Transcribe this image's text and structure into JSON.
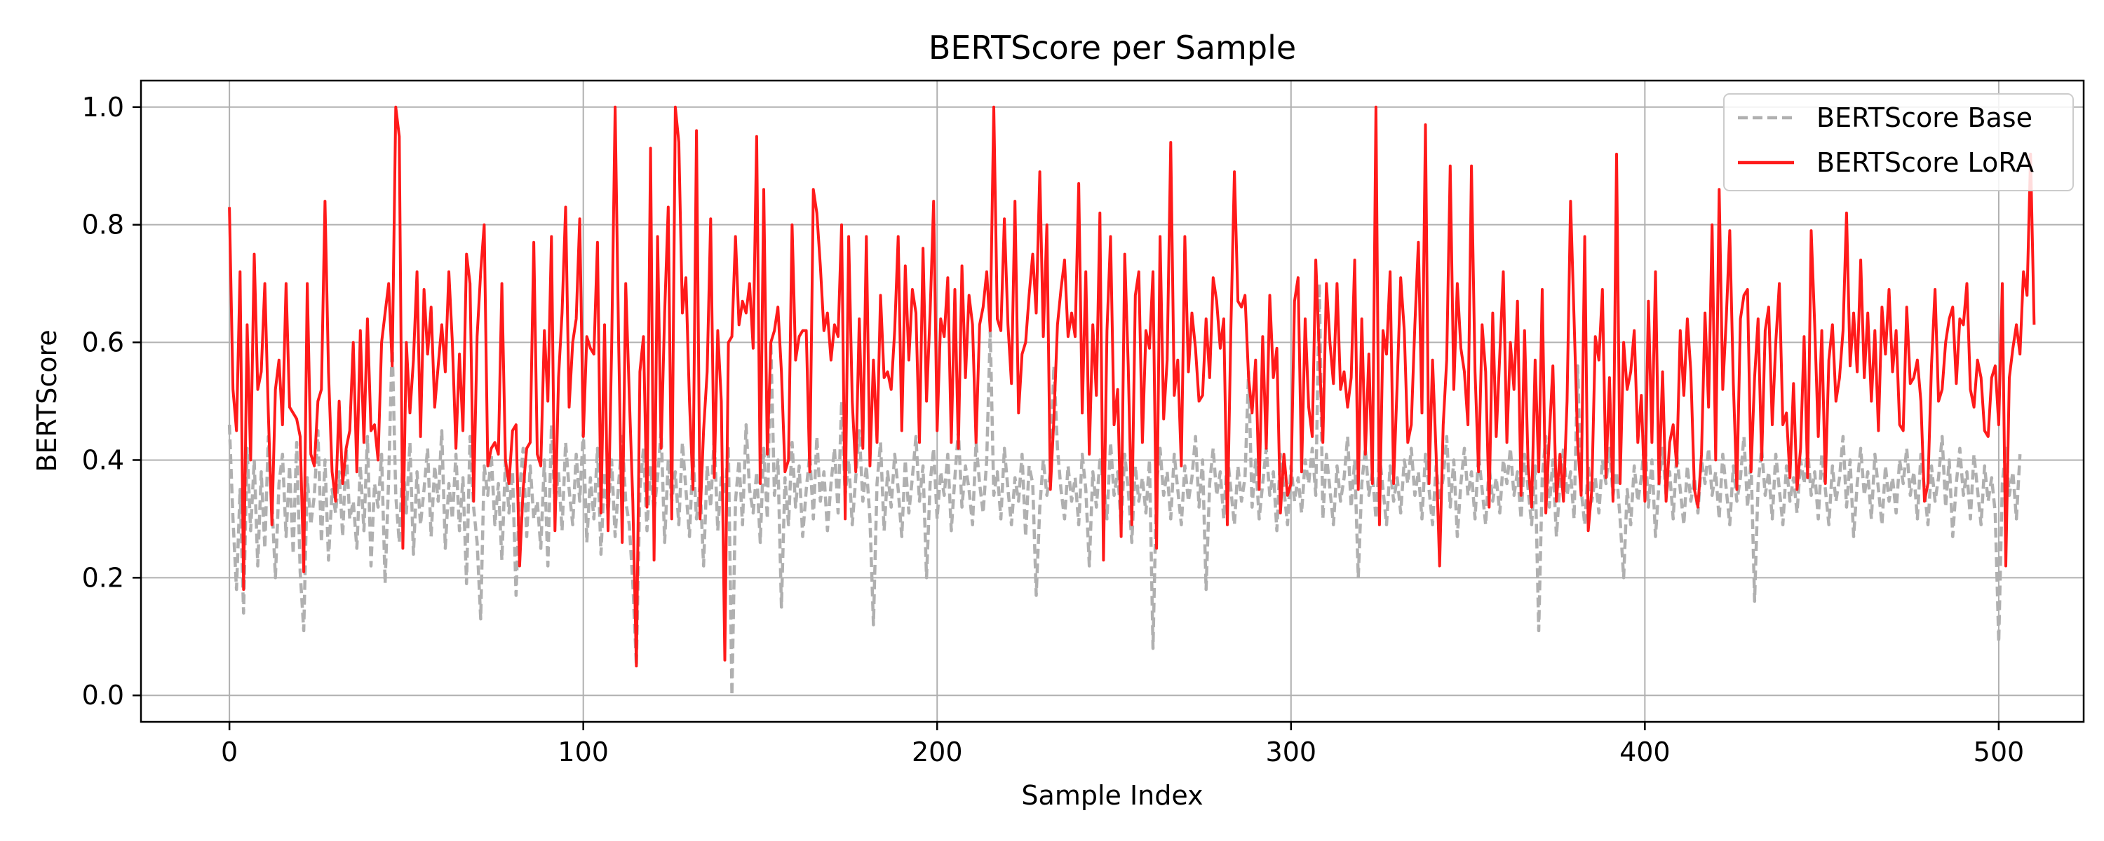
{
  "chart_data": {
    "type": "line",
    "title": "BERTScore per Sample",
    "xlabel": "Sample Index",
    "ylabel": "BERTScore",
    "xlim": [
      -25,
      524
    ],
    "ylim": [
      -0.045,
      1.045
    ],
    "xticks": [
      0,
      100,
      200,
      300,
      400,
      500
    ],
    "yticks": [
      0.0,
      0.2,
      0.4,
      0.6,
      0.8,
      1.0
    ],
    "xtick_labels": [
      "0",
      "100",
      "200",
      "300",
      "400",
      "500"
    ],
    "ytick_labels": [
      "0.0",
      "0.2",
      "0.4",
      "0.6",
      "0.8",
      "1.0"
    ],
    "grid": true,
    "legend_position": "top-right",
    "x": {
      "start": 0,
      "end": 499,
      "step": 1
    },
    "series": [
      {
        "name": "BERTScore Base",
        "color": "#b0b0b0",
        "style": "dashed",
        "values": [
          0.46,
          0.3,
          0.18,
          0.35,
          0.14,
          0.42,
          0.28,
          0.4,
          0.22,
          0.38,
          0.25,
          0.44,
          0.33,
          0.2,
          0.36,
          0.41,
          0.27,
          0.39,
          0.24,
          0.43,
          0.21,
          0.11,
          0.37,
          0.29,
          0.34,
          0.45,
          0.26,
          0.4,
          0.23,
          0.35,
          0.31,
          0.38,
          0.27,
          0.42,
          0.3,
          0.33,
          0.25,
          0.39,
          0.28,
          0.44,
          0.22,
          0.36,
          0.32,
          0.41,
          0.19,
          0.37,
          0.6,
          0.34,
          0.26,
          0.4,
          0.31,
          0.43,
          0.24,
          0.38,
          0.29,
          0.35,
          0.42,
          0.27,
          0.39,
          0.33,
          0.45,
          0.25,
          0.36,
          0.3,
          0.41,
          0.28,
          0.37,
          0.19,
          0.44,
          0.32,
          0.26,
          0.13,
          0.39,
          0.34,
          0.41,
          0.29,
          0.36,
          0.23,
          0.4,
          0.31,
          0.38,
          0.17,
          0.35,
          0.42,
          0.27,
          0.39,
          0.3,
          0.33,
          0.25,
          0.4,
          0.22,
          0.46,
          0.32,
          0.38,
          0.28,
          0.43,
          0.35,
          0.29,
          0.41,
          0.33,
          0.45,
          0.26,
          0.37,
          0.3,
          0.42,
          0.24,
          0.38,
          0.31,
          0.4,
          0.27,
          0.36,
          0.44,
          0.33,
          0.29,
          0.19,
          0.05,
          0.35,
          0.42,
          0.28,
          0.39,
          0.31,
          0.37,
          0.45,
          0.26,
          0.4,
          0.33,
          0.38,
          0.29,
          0.43,
          0.35,
          0.27,
          0.41,
          0.3,
          0.36,
          0.22,
          0.39,
          0.32,
          0.44,
          0.28,
          0.37,
          0.34,
          0.42,
          0.0,
          0.33,
          0.4,
          0.29,
          0.46,
          0.35,
          0.31,
          0.38,
          0.26,
          0.42,
          0.3,
          0.6,
          0.34,
          0.4,
          0.15,
          0.37,
          0.29,
          0.43,
          0.32,
          0.39,
          0.27,
          0.35,
          0.41,
          0.3,
          0.44,
          0.33,
          0.38,
          0.28,
          0.36,
          0.42,
          0.31,
          0.5,
          0.34,
          0.4,
          0.29,
          0.37,
          0.45,
          0.33,
          0.39,
          0.3,
          0.12,
          0.36,
          0.43,
          0.28,
          0.38,
          0.32,
          0.41,
          0.35,
          0.27,
          0.4,
          0.31,
          0.37,
          0.44,
          0.33,
          0.39,
          0.2,
          0.36,
          0.42,
          0.3,
          0.38,
          0.34,
          0.41,
          0.28,
          0.37,
          0.45,
          0.32,
          0.39,
          0.35,
          0.29,
          0.43,
          0.36,
          0.31,
          0.4,
          0.62,
          0.34,
          0.38,
          0.3,
          0.42,
          0.35,
          0.29,
          0.37,
          0.33,
          0.41,
          0.27,
          0.39,
          0.36,
          0.17,
          0.32,
          0.4,
          0.34,
          0.38,
          0.56,
          0.42,
          0.35,
          0.3,
          0.39,
          0.33,
          0.37,
          0.29,
          0.41,
          0.35,
          0.22,
          0.38,
          0.32,
          0.4,
          0.36,
          0.3,
          0.43,
          0.34,
          0.38,
          0.29,
          0.41,
          0.35,
          0.26,
          0.39,
          0.33,
          0.37,
          0.31,
          0.4,
          0.08,
          0.36,
          0.42,
          0.34,
          0.38,
          0.3,
          0.41,
          0.35,
          0.29,
          0.39,
          0.33,
          0.37,
          0.44,
          0.32,
          0.4,
          0.18,
          0.36,
          0.42,
          0.34,
          0.38,
          0.3,
          0.41,
          0.35,
          0.29,
          0.39,
          0.33,
          0.37,
          0.55,
          0.32,
          0.4,
          0.3,
          0.36,
          0.42,
          0.34,
          0.38,
          0.28,
          0.41,
          0.35,
          0.29,
          0.39,
          0.33,
          0.37,
          0.31,
          0.4,
          0.36,
          0.42,
          0.34,
          0.7,
          0.3,
          0.41,
          0.35,
          0.29,
          0.39,
          0.33,
          0.37,
          0.44,
          0.32,
          0.4,
          0.2,
          0.36,
          0.42,
          0.34,
          0.38,
          0.3,
          0.41,
          0.35,
          0.29,
          0.39,
          0.33,
          0.37,
          0.31,
          0.4,
          0.36,
          0.42,
          0.34,
          0.38,
          0.3,
          0.41,
          0.35,
          0.29,
          0.39,
          0.33,
          0.37,
          0.44,
          0.32,
          0.4,
          0.27,
          0.36,
          0.42,
          0.34,
          0.38,
          0.3,
          0.41,
          0.35,
          0.29,
          0.39,
          0.33,
          0.37,
          0.31,
          0.4,
          0.36,
          0.42,
          0.34,
          0.38,
          0.3,
          0.41,
          0.35,
          0.29,
          0.39,
          0.11,
          0.37,
          0.44,
          0.32,
          0.4,
          0.27,
          0.36,
          0.42,
          0.34,
          0.38,
          0.3,
          0.56,
          0.35,
          0.29,
          0.39,
          0.33,
          0.37,
          0.31,
          0.4,
          0.36,
          0.42,
          0.34,
          0.38,
          0.3,
          0.2,
          0.35,
          0.29,
          0.39,
          0.33,
          0.37,
          0.44,
          0.32,
          0.4,
          0.27,
          0.36,
          0.42,
          0.34,
          0.38,
          0.3,
          0.41,
          0.35,
          0.29,
          0.39,
          0.33,
          0.37,
          0.31,
          0.4,
          0.36,
          0.42,
          0.34,
          0.38,
          0.3,
          0.41,
          0.35,
          0.29,
          0.39,
          0.33,
          0.37,
          0.44,
          0.32,
          0.4,
          0.16,
          0.36,
          0.42,
          0.34,
          0.38,
          0.3,
          0.41,
          0.35,
          0.29,
          0.39,
          0.33,
          0.37,
          0.31,
          0.4,
          0.36,
          0.42,
          0.34,
          0.38,
          0.3,
          0.41,
          0.35,
          0.29,
          0.39,
          0.33,
          0.37,
          0.44,
          0.32,
          0.4,
          0.27,
          0.36,
          0.42,
          0.34,
          0.38,
          0.3,
          0.41,
          0.35,
          0.29,
          0.39,
          0.33,
          0.37,
          0.31,
          0.4,
          0.36,
          0.42,
          0.34,
          0.38,
          0.3,
          0.41,
          0.35,
          0.29,
          0.39,
          0.33,
          0.37,
          0.44,
          0.32,
          0.4,
          0.27,
          0.36,
          0.42,
          0.34,
          0.38,
          0.3,
          0.41,
          0.35,
          0.29,
          0.39,
          0.33,
          0.37,
          0.31,
          0.09,
          0.36,
          0.42,
          0.34,
          0.38,
          0.3,
          0.41
        ]
      },
      {
        "name": "BERTScore LoRA",
        "color": "#ff1a1a",
        "style": "solid",
        "values": [
          0.83,
          0.52,
          0.45,
          0.72,
          0.18,
          0.63,
          0.4,
          0.75,
          0.52,
          0.55,
          0.7,
          0.48,
          0.29,
          0.52,
          0.57,
          0.46,
          0.7,
          0.49,
          0.48,
          0.47,
          0.44,
          0.21,
          0.7,
          0.41,
          0.39,
          0.5,
          0.52,
          0.84,
          0.55,
          0.38,
          0.33,
          0.5,
          0.36,
          0.42,
          0.45,
          0.6,
          0.38,
          0.62,
          0.43,
          0.64,
          0.45,
          0.46,
          0.4,
          0.6,
          0.65,
          0.7,
          0.56,
          1.0,
          0.95,
          0.25,
          0.6,
          0.48,
          0.57,
          0.72,
          0.44,
          0.69,
          0.58,
          0.66,
          0.49,
          0.56,
          0.63,
          0.55,
          0.72,
          0.6,
          0.42,
          0.58,
          0.45,
          0.75,
          0.7,
          0.33,
          0.61,
          0.72,
          0.8,
          0.39,
          0.42,
          0.43,
          0.41,
          0.7,
          0.4,
          0.36,
          0.45,
          0.46,
          0.22,
          0.35,
          0.42,
          0.43,
          0.77,
          0.41,
          0.39,
          0.62,
          0.5,
          0.78,
          0.28,
          0.54,
          0.65,
          0.83,
          0.49,
          0.6,
          0.64,
          0.81,
          0.44,
          0.61,
          0.59,
          0.58,
          0.77,
          0.31,
          0.63,
          0.28,
          0.59,
          1.0,
          0.6,
          0.26,
          0.7,
          0.51,
          0.33,
          0.05,
          0.55,
          0.61,
          0.32,
          0.93,
          0.23,
          0.78,
          0.42,
          0.65,
          0.83,
          0.3,
          1.0,
          0.94,
          0.65,
          0.71,
          0.5,
          0.35,
          0.96,
          0.3,
          0.45,
          0.55,
          0.81,
          0.37,
          0.62,
          0.5,
          0.06,
          0.6,
          0.61,
          0.78,
          0.63,
          0.67,
          0.65,
          0.7,
          0.59,
          0.95,
          0.36,
          0.86,
          0.41,
          0.6,
          0.62,
          0.66,
          0.55,
          0.38,
          0.4,
          0.8,
          0.57,
          0.61,
          0.62,
          0.62,
          0.38,
          0.86,
          0.82,
          0.73,
          0.62,
          0.65,
          0.57,
          0.63,
          0.61,
          0.8,
          0.3,
          0.78,
          0.5,
          0.38,
          0.64,
          0.42,
          0.78,
          0.39,
          0.57,
          0.43,
          0.68,
          0.54,
          0.55,
          0.52,
          0.62,
          0.78,
          0.45,
          0.73,
          0.57,
          0.69,
          0.65,
          0.43,
          0.76,
          0.5,
          0.65,
          0.84,
          0.45,
          0.64,
          0.61,
          0.71,
          0.43,
          0.69,
          0.42,
          0.73,
          0.54,
          0.68,
          0.63,
          0.43,
          0.63,
          0.66,
          0.72,
          0.62,
          1.0,
          0.64,
          0.62,
          0.81,
          0.63,
          0.53,
          0.84,
          0.48,
          0.58,
          0.6,
          0.68,
          0.75,
          0.65,
          0.89,
          0.61,
          0.8,
          0.35,
          0.47,
          0.63,
          0.69,
          0.74,
          0.61,
          0.65,
          0.61,
          0.87,
          0.48,
          0.72,
          0.41,
          0.63,
          0.51,
          0.82,
          0.23,
          0.62,
          0.78,
          0.46,
          0.52,
          0.27,
          0.75,
          0.56,
          0.29,
          0.68,
          0.72,
          0.43,
          0.62,
          0.59,
          0.72,
          0.25,
          0.78,
          0.47,
          0.57,
          0.94,
          0.51,
          0.57,
          0.39,
          0.78,
          0.55,
          0.65,
          0.59,
          0.5,
          0.51,
          0.64,
          0.54,
          0.71,
          0.67,
          0.59,
          0.64,
          0.29,
          0.62,
          0.89,
          0.67,
          0.66,
          0.68,
          0.54,
          0.48,
          0.57,
          0.35,
          0.61,
          0.42,
          0.68,
          0.54,
          0.59,
          0.31,
          0.41,
          0.34,
          0.36,
          0.67,
          0.71,
          0.38,
          0.64,
          0.49,
          0.44,
          0.74,
          0.58,
          0.43,
          0.7,
          0.6,
          0.53,
          0.7,
          0.52,
          0.55,
          0.49,
          0.54,
          0.74,
          0.35,
          0.64,
          0.41,
          0.58,
          0.36,
          1.0,
          0.29,
          0.62,
          0.58,
          0.72,
          0.36,
          0.53,
          0.71,
          0.62,
          0.43,
          0.46,
          0.63,
          0.77,
          0.48,
          0.97,
          0.36,
          0.57,
          0.41,
          0.22,
          0.46,
          0.57,
          0.9,
          0.52,
          0.7,
          0.59,
          0.55,
          0.46,
          0.9,
          0.55,
          0.38,
          0.63,
          0.55,
          0.32,
          0.65,
          0.44,
          0.58,
          0.72,
          0.43,
          0.6,
          0.52,
          0.67,
          0.34,
          0.62,
          0.39,
          0.32,
          0.57,
          0.38,
          0.69,
          0.31,
          0.44,
          0.56,
          0.33,
          0.41,
          0.33,
          0.5,
          0.84,
          0.64,
          0.43,
          0.34,
          0.78,
          0.28,
          0.35,
          0.61,
          0.57,
          0.69,
          0.37,
          0.54,
          0.33,
          0.92,
          0.36,
          0.6,
          0.52,
          0.55,
          0.62,
          0.43,
          0.51,
          0.33,
          0.67,
          0.43,
          0.72,
          0.36,
          0.55,
          0.33,
          0.43,
          0.46,
          0.39,
          0.62,
          0.51,
          0.64,
          0.55,
          0.35,
          0.32,
          0.41,
          0.65,
          0.49,
          0.8,
          0.4,
          0.86,
          0.52,
          0.64,
          0.79,
          0.53,
          0.35,
          0.64,
          0.68,
          0.69,
          0.38,
          0.54,
          0.64,
          0.4,
          0.62,
          0.66,
          0.46,
          0.6,
          0.7,
          0.46,
          0.48,
          0.37,
          0.53,
          0.35,
          0.42,
          0.61,
          0.37,
          0.79,
          0.63,
          0.44,
          0.62,
          0.36,
          0.57,
          0.63,
          0.5,
          0.54,
          0.62,
          0.82,
          0.56,
          0.65,
          0.55,
          0.74,
          0.54,
          0.65,
          0.5,
          0.62,
          0.45,
          0.66,
          0.58,
          0.69,
          0.55,
          0.62,
          0.46,
          0.45,
          0.66,
          0.53,
          0.54,
          0.57,
          0.5,
          0.33,
          0.36,
          0.56,
          0.69,
          0.5,
          0.52,
          0.6,
          0.64,
          0.66,
          0.53,
          0.64,
          0.63,
          0.7,
          0.52,
          0.49,
          0.57,
          0.54,
          0.45,
          0.44,
          0.54,
          0.56,
          0.46,
          0.7,
          0.22,
          0.54,
          0.59,
          0.63,
          0.58,
          0.72,
          0.68,
          0.92,
          0.63
        ]
      }
    ]
  }
}
